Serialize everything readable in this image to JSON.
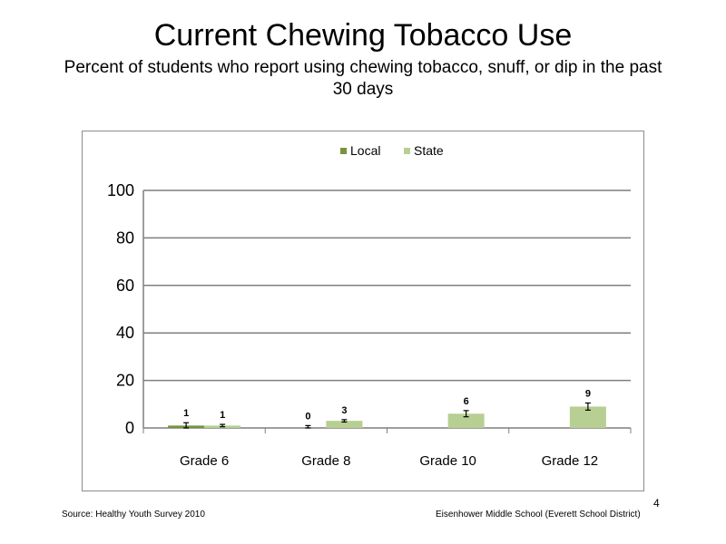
{
  "slide": {
    "title": "Current Chewing Tobacco Use",
    "subtitle": "Percent of students who report using chewing tobacco, snuff, or dip in the past 30 days",
    "source": "Source: Healthy Youth Survey 2010",
    "school": "Eisenhower Middle  School (Everett School District)",
    "page_number": "4"
  },
  "chart_data": {
    "type": "bar",
    "categories": [
      "Grade 6",
      "Grade 8",
      "Grade 10",
      "Grade 12"
    ],
    "series": [
      {
        "name": "Local",
        "values": [
          1,
          0,
          null,
          null
        ],
        "labels": [
          "1",
          "0",
          "",
          ""
        ],
        "color": "#77933c",
        "error": [
          1.2,
          1.0,
          null,
          null
        ]
      },
      {
        "name": "State",
        "values": [
          1,
          3,
          6,
          9
        ],
        "labels": [
          "1",
          "3",
          "6",
          "9"
        ],
        "color": "#b7cf93",
        "error": [
          0.5,
          0.5,
          1.3,
          1.5
        ]
      }
    ],
    "ylim": [
      0,
      100
    ],
    "yticks": [
      "0",
      "20",
      "40",
      "60",
      "80",
      "100"
    ],
    "grid": true,
    "legend": "top-center"
  }
}
